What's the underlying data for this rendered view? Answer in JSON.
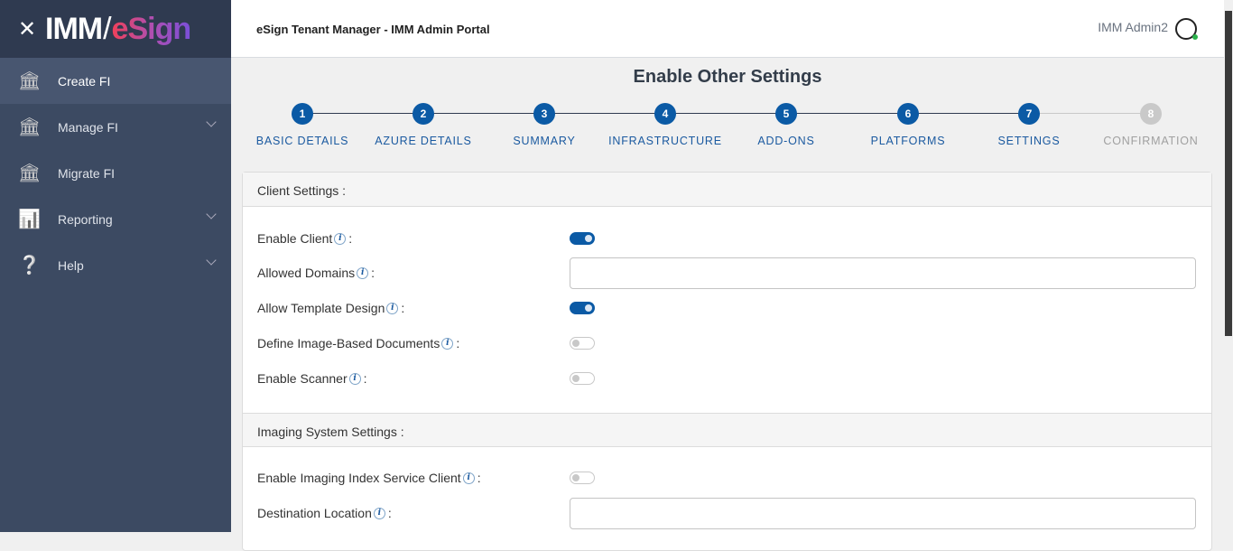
{
  "brand": {
    "logo_left": "IMM",
    "logo_right": "eSign"
  },
  "sidebar": {
    "items": [
      {
        "label": "Create FI",
        "icon": "bank-plus-icon",
        "active": true
      },
      {
        "label": "Manage FI",
        "icon": "bank-gear-icon",
        "expandable": true
      },
      {
        "label": "Migrate FI",
        "icon": "bank-arrow-icon"
      },
      {
        "label": "Reporting",
        "icon": "bar-chart-icon",
        "expandable": true
      },
      {
        "label": "Help",
        "icon": "help-bubble-icon",
        "expandable": true
      }
    ]
  },
  "header": {
    "title": "eSign Tenant Manager - IMM Admin Portal",
    "user": "IMM Admin2"
  },
  "page": {
    "title": "Enable Other Settings"
  },
  "steps": [
    {
      "num": "1",
      "label": "BASIC DETAILS",
      "done": true
    },
    {
      "num": "2",
      "label": "AZURE DETAILS",
      "done": true
    },
    {
      "num": "3",
      "label": "SUMMARY",
      "done": true
    },
    {
      "num": "4",
      "label": "INFRASTRUCTURE",
      "done": true
    },
    {
      "num": "5",
      "label": "ADD-ONS",
      "done": true
    },
    {
      "num": "6",
      "label": "PLATFORMS",
      "done": true
    },
    {
      "num": "7",
      "label": "SETTINGS",
      "done": true
    },
    {
      "num": "8",
      "label": "CONFIRMATION",
      "done": false
    }
  ],
  "client": {
    "header": "Client Settings :",
    "fields": [
      {
        "label": "Enable Client",
        "type": "toggle",
        "value": true
      },
      {
        "label": "Allowed Domains",
        "type": "text",
        "value": ""
      },
      {
        "label": "Allow Template Design",
        "type": "toggle",
        "value": true
      },
      {
        "label": "Define Image-Based Documents",
        "type": "toggle",
        "value": false
      },
      {
        "label": "Enable Scanner",
        "type": "toggle",
        "value": false
      }
    ]
  },
  "imaging": {
    "header": "Imaging System Settings :",
    "fields": [
      {
        "label": "Enable Imaging Index Service Client",
        "type": "toggle",
        "value": false
      },
      {
        "label": "Destination Location",
        "type": "text",
        "value": ""
      }
    ]
  },
  "colon": ":",
  "info_glyph": "i",
  "colors": {
    "primary": "#0b5aa5",
    "sidebar": "#3c4a62",
    "inactive": "#c9c9c9"
  }
}
